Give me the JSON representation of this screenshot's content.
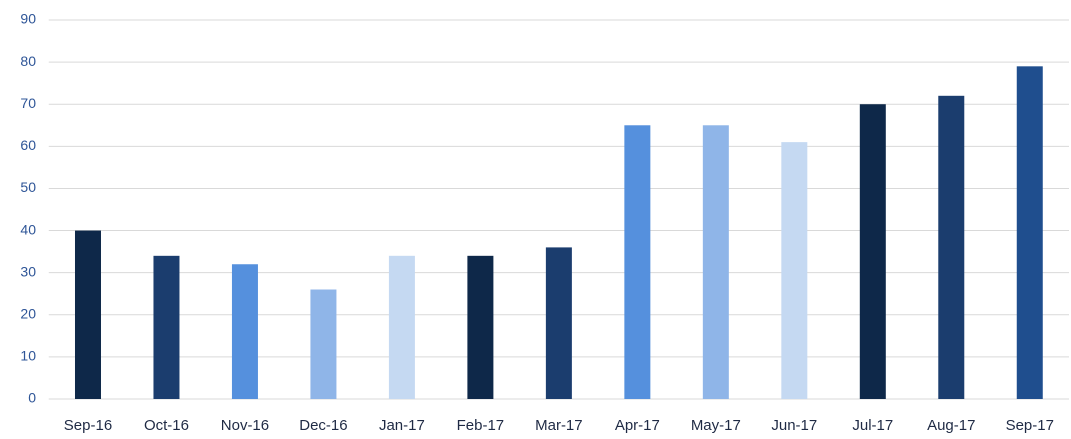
{
  "chart_data": {
    "type": "bar",
    "categories": [
      "Sep-16",
      "Oct-16",
      "Nov-16",
      "Dec-16",
      "Jan-17",
      "Feb-17",
      "Mar-17",
      "Apr-17",
      "May-17",
      "Jun-17",
      "Jul-17",
      "Aug-17",
      "Sep-17"
    ],
    "values": [
      40,
      34,
      32,
      26,
      34,
      34,
      36,
      65,
      65,
      61,
      70,
      72,
      79
    ],
    "colors": [
      "#0e2849",
      "#1b3d6e",
      "#5590dd",
      "#8fb5e8",
      "#c5d9f2",
      "#0e2849",
      "#1b3d6e",
      "#5590dd",
      "#8fb5e8",
      "#c5d9f2",
      "#0e2849",
      "#1b3d6e",
      "#1f4e8e"
    ],
    "ylim": [
      0,
      90
    ],
    "yticks": [
      0,
      10,
      20,
      30,
      40,
      50,
      60,
      70,
      80,
      90
    ],
    "grid": true
  }
}
